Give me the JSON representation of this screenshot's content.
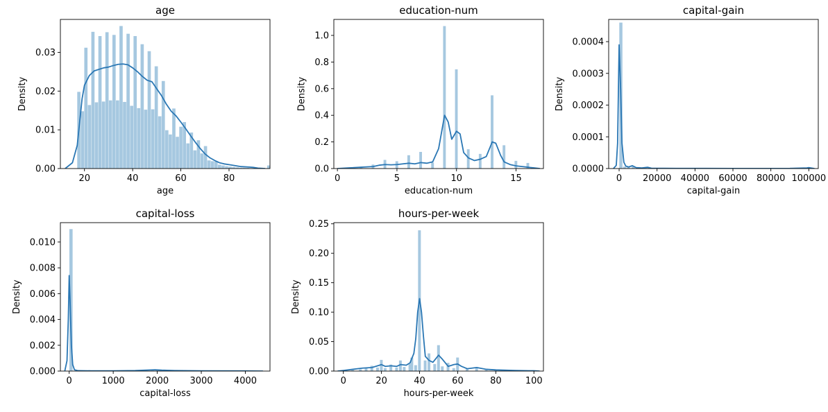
{
  "chart_data": [
    {
      "id": "age",
      "type": "histogram+kde",
      "title": "age",
      "xlabel": "age",
      "ylabel": "Density",
      "xlim": [
        10,
        97
      ],
      "ylim": [
        0,
        0.0385
      ],
      "xticks": [
        20,
        40,
        60,
        80
      ],
      "yticks": [
        0.0,
        0.01,
        0.02,
        0.03
      ],
      "ytick_format": "fixed2",
      "bin_start": 17,
      "bin_width": 1.46,
      "values": [
        0.0198,
        0.0148,
        0.0312,
        0.0164,
        0.0353,
        0.0171,
        0.0342,
        0.0173,
        0.0352,
        0.0176,
        0.0345,
        0.0176,
        0.0368,
        0.0172,
        0.0348,
        0.0162,
        0.0342,
        0.0156,
        0.0321,
        0.0152,
        0.0303,
        0.0153,
        0.0264,
        0.0135,
        0.0226,
        0.0099,
        0.0088,
        0.0155,
        0.0082,
        0.0108,
        0.012,
        0.0065,
        0.0093,
        0.0047,
        0.0073,
        0.0039,
        0.0058,
        0.0021,
        0.0019,
        0.0018,
        0.001,
        0.0008,
        0.0006,
        0.0005,
        0.0004,
        0.0003,
        0.0002,
        0.0002,
        0.0002,
        0.0001,
        0.0001,
        0.0001,
        0.0001,
        0.0001,
        0.0008,
        0.0004,
        0.0001,
        0.0001
      ],
      "kde_x": [
        12,
        15,
        17,
        18,
        19,
        20,
        22,
        24,
        26,
        28,
        30,
        32,
        34,
        36,
        38,
        40,
        42,
        44,
        46,
        48,
        50,
        52,
        54,
        56,
        58,
        60,
        62,
        64,
        66,
        68,
        70,
        72,
        74,
        76,
        78,
        80,
        82,
        85,
        88,
        90,
        92,
        95
      ],
      "kde_y": [
        0,
        0.0015,
        0.006,
        0.012,
        0.018,
        0.0215,
        0.024,
        0.0252,
        0.0256,
        0.026,
        0.0262,
        0.0266,
        0.0269,
        0.027,
        0.0268,
        0.026,
        0.025,
        0.0238,
        0.0228,
        0.0224,
        0.0206,
        0.0188,
        0.0166,
        0.0148,
        0.0136,
        0.012,
        0.0103,
        0.0085,
        0.0068,
        0.0052,
        0.0038,
        0.0028,
        0.0021,
        0.0015,
        0.0012,
        0.001,
        0.0008,
        0.0005,
        0.0004,
        0.0003,
        0.0001,
        0
      ]
    },
    {
      "id": "education-num",
      "type": "histogram+kde",
      "title": "education-num",
      "xlabel": "education-num",
      "ylabel": "Density",
      "xlim": [
        -0.3,
        17.3
      ],
      "ylim": [
        0,
        1.12
      ],
      "xticks": [
        0,
        5,
        10,
        15
      ],
      "yticks": [
        0.0,
        0.2,
        0.4,
        0.6,
        0.8,
        1.0
      ],
      "ytick_format": "fixed1",
      "bar_width": 0.25,
      "bars": [
        [
          1,
          0.005
        ],
        [
          2,
          0.01
        ],
        [
          3,
          0.03
        ],
        [
          4,
          0.065
        ],
        [
          5,
          0.055
        ],
        [
          6,
          0.1
        ],
        [
          7,
          0.125
        ],
        [
          8,
          0.045
        ],
        [
          9,
          1.07
        ],
        [
          10,
          0.745
        ],
        [
          11,
          0.145
        ],
        [
          12,
          0.11
        ],
        [
          13,
          0.55
        ],
        [
          14,
          0.175
        ],
        [
          15,
          0.058
        ],
        [
          16,
          0.042
        ]
      ],
      "kde_x": [
        0,
        1,
        2,
        3,
        3.5,
        4,
        4.5,
        5,
        5.5,
        6,
        6.5,
        7,
        7.5,
        8,
        8.5,
        9,
        9.3,
        9.6,
        10,
        10.3,
        10.6,
        11,
        11.5,
        12,
        12.5,
        13,
        13.3,
        13.7,
        14,
        14.5,
        15,
        15.5,
        16,
        16.5,
        17
      ],
      "kde_y": [
        0,
        0.005,
        0.01,
        0.015,
        0.025,
        0.03,
        0.028,
        0.03,
        0.035,
        0.04,
        0.035,
        0.045,
        0.04,
        0.05,
        0.15,
        0.4,
        0.35,
        0.22,
        0.28,
        0.26,
        0.12,
        0.08,
        0.06,
        0.07,
        0.09,
        0.2,
        0.19,
        0.1,
        0.05,
        0.03,
        0.02,
        0.015,
        0.01,
        0.005,
        0
      ]
    },
    {
      "id": "capital-gain",
      "type": "histogram+kde",
      "title": "capital-gain",
      "xlabel": "capital-gain",
      "ylabel": "Density",
      "xlim": [
        -5500,
        105000
      ],
      "ylim": [
        0,
        0.00047
      ],
      "xticks": [
        0,
        20000,
        40000,
        60000,
        80000,
        100000
      ],
      "yticks": [
        0.0,
        0.0001,
        0.0002,
        0.0003,
        0.0004
      ],
      "ytick_format": "fixed4",
      "bar_width": 1800,
      "bars": [
        [
          1000,
          0.00046
        ],
        [
          3000,
          6e-06
        ],
        [
          5000,
          4e-06
        ],
        [
          7500,
          7e-06
        ],
        [
          10000,
          2e-06
        ],
        [
          15000,
          3e-06
        ],
        [
          99999,
          2e-06
        ]
      ],
      "kde_x": [
        -3000,
        -1500,
        -800,
        0,
        800,
        1500,
        2500,
        3500,
        5000,
        7000,
        8000,
        9000,
        12000,
        15000,
        17000,
        30000,
        60000,
        90000,
        99000,
        99999,
        101000,
        103000
      ],
      "kde_y": [
        0,
        1e-05,
        8e-05,
        0.00039,
        0.00025,
        8e-05,
        2e-05,
        8e-06,
        5e-06,
        9e-06,
        6e-06,
        3e-06,
        2e-06,
        4e-06,
        1e-06,
        5e-07,
        3e-07,
        5e-07,
        2e-06,
        3e-06,
        2e-06,
        0
      ]
    },
    {
      "id": "capital-loss",
      "type": "histogram+kde",
      "title": "capital-loss",
      "xlabel": "capital-loss",
      "ylabel": "Density",
      "xlim": [
        -200,
        4560
      ],
      "ylim": [
        0,
        0.0115
      ],
      "xticks": [
        0,
        1000,
        2000,
        3000,
        4000
      ],
      "yticks": [
        0.0,
        0.002,
        0.004,
        0.006,
        0.008,
        0.01
      ],
      "ytick_format": "fixed3",
      "bar_width": 80,
      "bars": [
        [
          44,
          0.011
        ],
        [
          1600,
          3e-05
        ],
        [
          1900,
          8e-05
        ],
        [
          2000,
          5e-05
        ],
        [
          2400,
          2e-05
        ]
      ],
      "kde_x": [
        -100,
        -50,
        -20,
        0,
        20,
        50,
        80,
        120,
        200,
        500,
        1000,
        1500,
        1800,
        1950,
        2100,
        2400,
        3000,
        4000,
        4400
      ],
      "kde_y": [
        0,
        0.0008,
        0.004,
        0.0074,
        0.0055,
        0.002,
        0.0005,
        0.0001,
        3e-05,
        2e-05,
        2e-05,
        4e-05,
        8e-05,
        0.0001,
        7e-05,
        4e-05,
        2e-05,
        1e-05,
        0
      ]
    },
    {
      "id": "hours-per-week",
      "type": "histogram+kde",
      "title": "hours-per-week",
      "xlabel": "hours-per-week",
      "ylabel": "Density",
      "xlim": [
        -5,
        105
      ],
      "ylim": [
        0,
        0.252
      ],
      "xticks": [
        0,
        20,
        40,
        60,
        80,
        100
      ],
      "yticks": [
        0.0,
        0.05,
        0.1,
        0.15,
        0.2,
        0.25
      ],
      "ytick_format": "fixed2",
      "bar_width": 1.6,
      "bars": [
        [
          1,
          0.001
        ],
        [
          5,
          0.002
        ],
        [
          9,
          0.003
        ],
        [
          12,
          0.005
        ],
        [
          15,
          0.009
        ],
        [
          18,
          0.006
        ],
        [
          20,
          0.019
        ],
        [
          22,
          0.005
        ],
        [
          25,
          0.011
        ],
        [
          28,
          0.006
        ],
        [
          30,
          0.018
        ],
        [
          32,
          0.007
        ],
        [
          35,
          0.012
        ],
        [
          36,
          0.023
        ],
        [
          38,
          0.01
        ],
        [
          40,
          0.239
        ],
        [
          43,
          0.018
        ],
        [
          45,
          0.03
        ],
        [
          48,
          0.012
        ],
        [
          50,
          0.044
        ],
        [
          52,
          0.008
        ],
        [
          55,
          0.014
        ],
        [
          58,
          0.005
        ],
        [
          60,
          0.023
        ],
        [
          65,
          0.004
        ],
        [
          70,
          0.005
        ],
        [
          75,
          0.002
        ],
        [
          80,
          0.003
        ],
        [
          85,
          0.001
        ],
        [
          99,
          0.001
        ]
      ],
      "kde_x": [
        -3,
        0,
        5,
        10,
        15,
        18,
        20,
        22,
        25,
        28,
        30,
        33,
        35,
        37,
        38,
        39,
        40,
        41,
        42,
        43,
        45,
        47,
        50,
        52,
        55,
        58,
        60,
        62,
        65,
        70,
        75,
        80,
        90,
        100,
        103
      ],
      "kde_y": [
        0,
        0.001,
        0.003,
        0.005,
        0.006,
        0.009,
        0.011,
        0.008,
        0.009,
        0.008,
        0.011,
        0.01,
        0.014,
        0.03,
        0.055,
        0.1,
        0.123,
        0.1,
        0.06,
        0.025,
        0.018,
        0.015,
        0.027,
        0.02,
        0.008,
        0.011,
        0.012,
        0.008,
        0.004,
        0.006,
        0.003,
        0.002,
        0.001,
        0.0005,
        0
      ]
    }
  ]
}
